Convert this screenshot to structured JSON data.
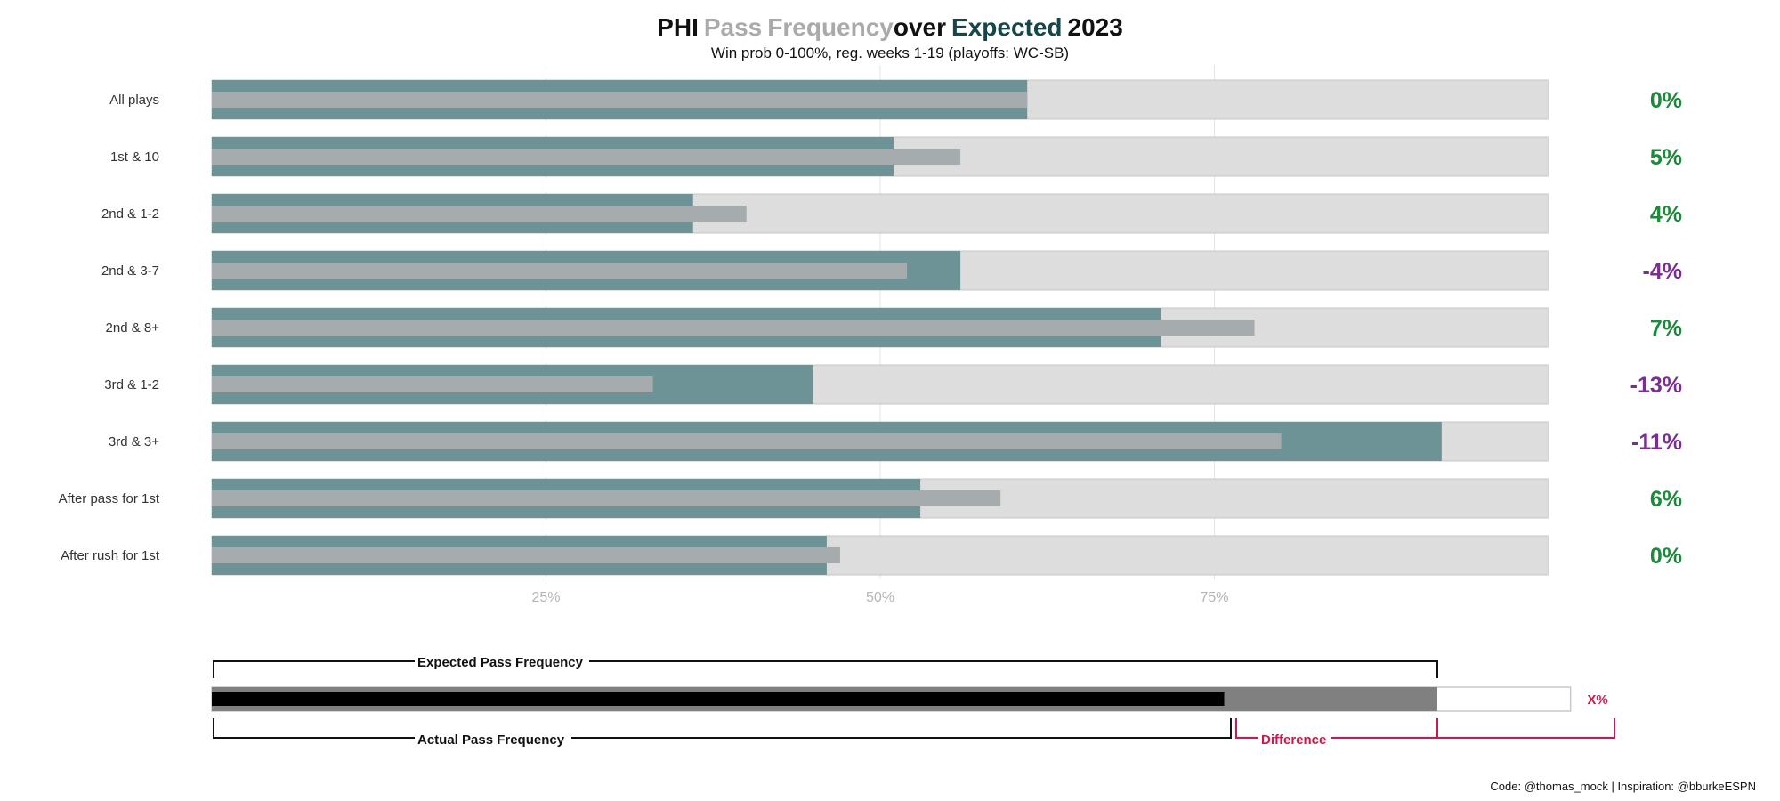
{
  "chart_data": {
    "type": "bar",
    "title": {
      "team": "PHI",
      "word_pass": "Pass",
      "word_frequency": "Frequency",
      "word_over": "over",
      "word_expected": "Expected",
      "year": "2023"
    },
    "subtitle": "Win prob 0-100%, reg. weeks 1-19 (playoffs: WC-SB)",
    "xlim": [
      0,
      100
    ],
    "x_ticks": [
      {
        "value": 25,
        "label": "25%"
      },
      {
        "value": 50,
        "label": "50%"
      },
      {
        "value": 75,
        "label": "75%"
      }
    ],
    "grid": true,
    "categories": [
      "All plays",
      "1st & 10",
      "2nd & 1-2",
      "2nd & 3-7",
      "2nd & 8+",
      "3rd & 1-2",
      "3rd & 3+",
      "After pass for 1st",
      "After rush for 1st"
    ],
    "series": [
      {
        "key": "actual",
        "values": [
          61,
          51,
          36,
          56,
          71,
          45,
          92,
          53,
          46
        ]
      },
      {
        "key": "expected",
        "values": [
          61,
          56,
          40,
          52,
          78,
          33,
          80,
          59,
          47
        ]
      }
    ],
    "difference_labels": [
      "0%",
      "5%",
      "4%",
      "-4%",
      "7%",
      "-13%",
      "-11%",
      "6%",
      "0%"
    ],
    "difference_signs": [
      "pos",
      "pos",
      "pos",
      "neg",
      "pos",
      "neg",
      "neg",
      "pos",
      "pos"
    ],
    "colors": {
      "actual": "#6e9396",
      "expected": "#a6acad",
      "background_bar": "#dddddd",
      "positive": "#1b8a3a",
      "negative": "#7b2d93",
      "title_pass": "#aaaaaa",
      "title_expected": "#15464b",
      "legend_red": "#d1174a"
    }
  },
  "legend": {
    "expected_label": "Expected Pass Frequency",
    "actual_label": "Actual Pass Frequency",
    "difference_label": "Difference",
    "value_label": "X%",
    "example": {
      "actual": 76,
      "expected": 92,
      "max": 102
    }
  },
  "caption": "Code: @thomas_mock | Inspiration: @bburkeESPN"
}
